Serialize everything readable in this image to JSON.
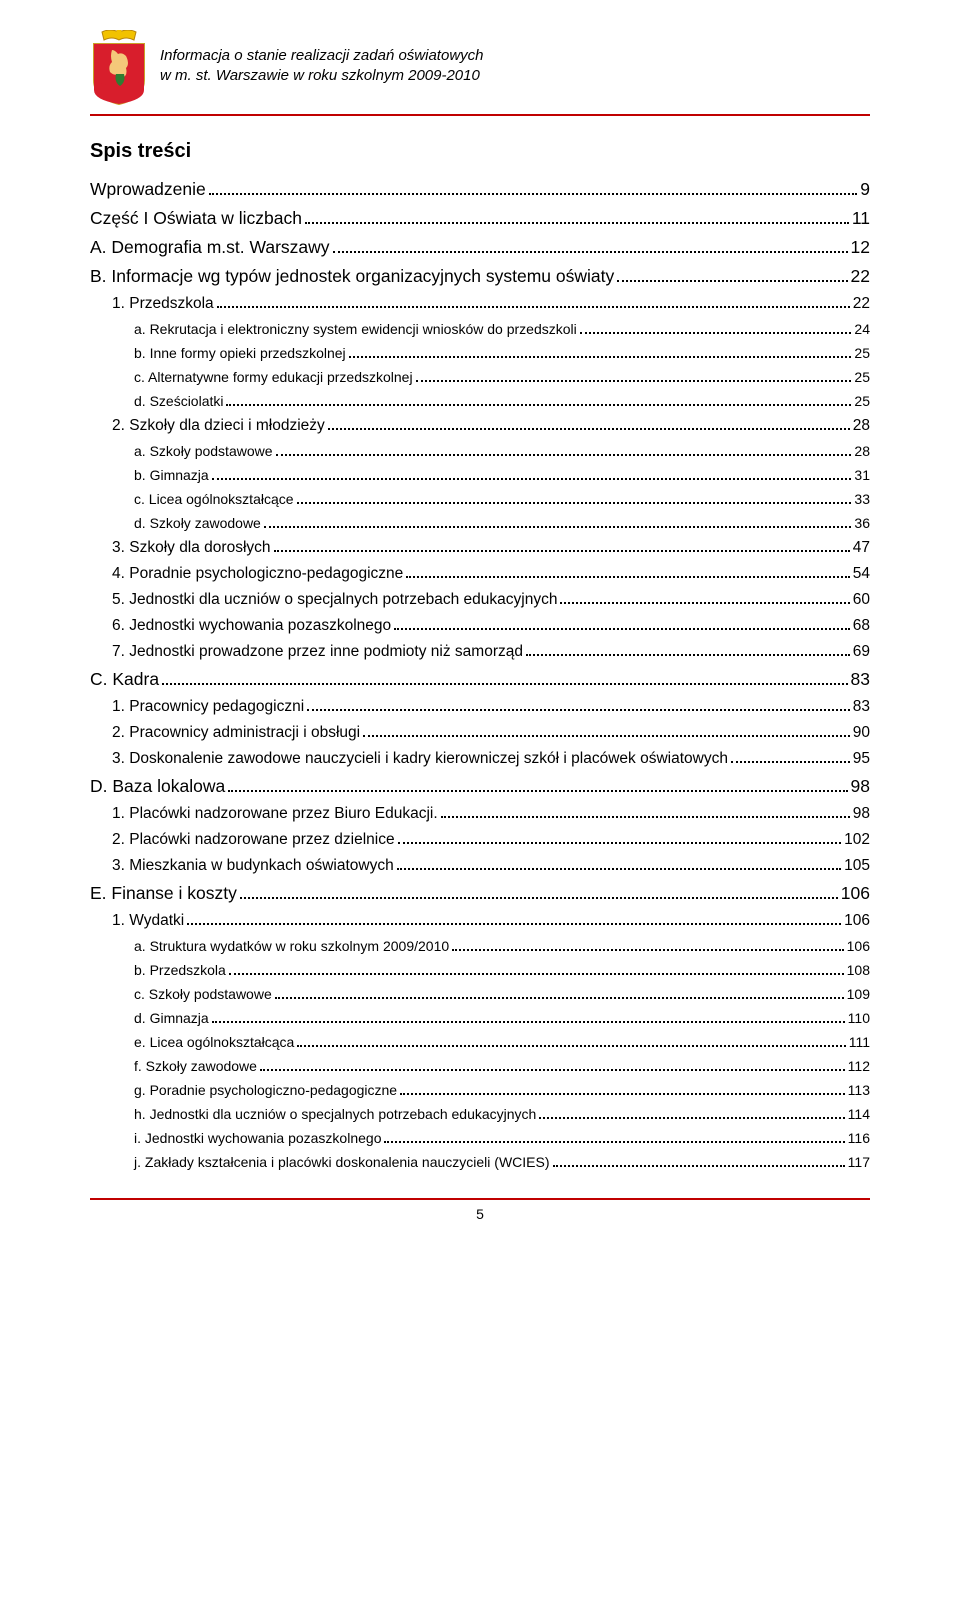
{
  "header": {
    "line1": "Informacja o stanie realizacji zadań oświatowych",
    "line2": "w m. st. Warszawie w roku szkolnym 2009-2010"
  },
  "title": "Spis treści",
  "page_number": "5",
  "colors": {
    "rule": "#c00000",
    "text": "#000000",
    "background": "#ffffff"
  },
  "toc": [
    {
      "level": 0,
      "label": "Wprowadzenie",
      "page": "9"
    },
    {
      "level": 0,
      "label": "Część I Oświata w liczbach",
      "page": "11"
    },
    {
      "level": 0,
      "label": "A. Demografia m.st. Warszawy",
      "page": "12"
    },
    {
      "level": 0,
      "label": "B. Informacje wg typów jednostek organizacyjnych systemu oświaty",
      "page": "22"
    },
    {
      "level": 1,
      "label": "1. Przedszkola",
      "page": "22"
    },
    {
      "level": 2,
      "label": "a. Rekrutacja i elektroniczny system ewidencji wniosków do przedszkoli",
      "page": "24"
    },
    {
      "level": 2,
      "label": "b. Inne formy opieki przedszkolnej",
      "page": "25"
    },
    {
      "level": 2,
      "label": "c. Alternatywne formy edukacji przedszkolnej",
      "page": "25"
    },
    {
      "level": 2,
      "label": "d. Sześciolatki",
      "page": "25"
    },
    {
      "level": 1,
      "label": "2. Szkoły dla dzieci i młodzieży",
      "page": "28"
    },
    {
      "level": 2,
      "label": "a. Szkoły podstawowe",
      "page": "28"
    },
    {
      "level": 2,
      "label": "b. Gimnazja",
      "page": "31"
    },
    {
      "level": 2,
      "label": "c. Licea ogólnokształcące",
      "page": "33"
    },
    {
      "level": 2,
      "label": "d. Szkoły zawodowe",
      "page": "36"
    },
    {
      "level": 1,
      "label": "3. Szkoły dla dorosłych",
      "page": "47"
    },
    {
      "level": 1,
      "label": "4. Poradnie psychologiczno-pedagogiczne",
      "page": "54"
    },
    {
      "level": 1,
      "label": "5. Jednostki dla uczniów o specjalnych potrzebach edukacyjnych",
      "page": "60"
    },
    {
      "level": 1,
      "label": "6. Jednostki wychowania pozaszkolnego",
      "page": "68"
    },
    {
      "level": 1,
      "label": "7. Jednostki prowadzone przez inne podmioty niż samorząd",
      "page": "69"
    },
    {
      "level": 0,
      "label": "C. Kadra",
      "page": "83"
    },
    {
      "level": 1,
      "label": "1. Pracownicy pedagogiczni",
      "page": "83"
    },
    {
      "level": 1,
      "label": "2. Pracownicy administracji i obsługi",
      "page": "90"
    },
    {
      "level": 1,
      "label": "3. Doskonalenie zawodowe nauczycieli i kadry kierowniczej szkół i placówek oświatowych",
      "page": "95"
    },
    {
      "level": 0,
      "label": "D. Baza lokalowa",
      "page": "98"
    },
    {
      "level": 1,
      "label": "1. Placówki nadzorowane przez Biuro Edukacji.",
      "page": "98"
    },
    {
      "level": 1,
      "label": "2. Placówki nadzorowane przez dzielnice",
      "page": "102"
    },
    {
      "level": 1,
      "label": "3. Mieszkania w budynkach oświatowych",
      "page": "105"
    },
    {
      "level": 0,
      "label": "E. Finanse i koszty",
      "page": "106"
    },
    {
      "level": 1,
      "label": "1. Wydatki",
      "page": "106"
    },
    {
      "level": 2,
      "label": "a. Struktura wydatków w roku szkolnym 2009/2010",
      "page": "106"
    },
    {
      "level": 2,
      "label": "b. Przedszkola",
      "page": "108"
    },
    {
      "level": 2,
      "label": "c. Szkoły podstawowe",
      "page": "109"
    },
    {
      "level": 2,
      "label": "d. Gimnazja",
      "page": "110"
    },
    {
      "level": 2,
      "label": "e. Licea ogólnokształcąca",
      "page": "111"
    },
    {
      "level": 2,
      "label": "f. Szkoły zawodowe",
      "page": "112"
    },
    {
      "level": 2,
      "label": "g. Poradnie psychologiczno-pedagogiczne",
      "page": "113"
    },
    {
      "level": 2,
      "label": "h. Jednostki dla uczniów o specjalnych potrzebach edukacyjnych",
      "page": "114"
    },
    {
      "level": 2,
      "label": "i. Jednostki wychowania pozaszkolnego",
      "page": "116"
    },
    {
      "level": 2,
      "label": "j. Zakłady kształcenia i placówki doskonalenia nauczycieli (WCIES)",
      "page": "117"
    }
  ]
}
